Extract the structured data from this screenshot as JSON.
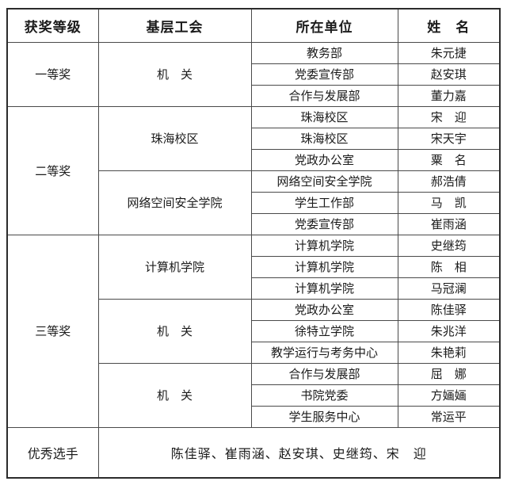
{
  "table": {
    "headers": [
      "获奖等级",
      "基层工会",
      "所在单位",
      "姓　名"
    ],
    "sections": [
      {
        "level": "一等奖",
        "groups": [
          {
            "union": "机　关",
            "rows": [
              {
                "unit": "教务部",
                "name": "朱元捷"
              },
              {
                "unit": "党委宣传部",
                "name": "赵安琪"
              },
              {
                "unit": "合作与发展部",
                "name": "董力嘉"
              }
            ]
          }
        ]
      },
      {
        "level": "二等奖",
        "groups": [
          {
            "union": "珠海校区",
            "rows": [
              {
                "unit": "珠海校区",
                "name": "宋　迎"
              },
              {
                "unit": "珠海校区",
                "name": "宋天宇"
              },
              {
                "unit": "党政办公室",
                "name": "粟　名"
              }
            ]
          },
          {
            "union": "网络空间安全学院",
            "rows": [
              {
                "unit": "网络空间安全学院",
                "name": "郝浩倩"
              },
              {
                "unit": "学生工作部",
                "name": "马　凯"
              },
              {
                "unit": "党委宣传部",
                "name": "崔雨涵"
              }
            ]
          }
        ]
      },
      {
        "level": "三等奖",
        "groups": [
          {
            "union": "计算机学院",
            "rows": [
              {
                "unit": "计算机学院",
                "name": "史继筠"
              },
              {
                "unit": "计算机学院",
                "name": "陈　相"
              },
              {
                "unit": "计算机学院",
                "name": "马冠澜"
              }
            ]
          },
          {
            "union": "机　关",
            "rows": [
              {
                "unit": "党政办公室",
                "name": "陈佳驿"
              },
              {
                "unit": "徐特立学院",
                "name": "朱兆洋"
              },
              {
                "unit": "教学运行与考务中心",
                "name": "朱艳莉"
              }
            ]
          },
          {
            "union": "机　关",
            "rows": [
              {
                "unit": "合作与发展部",
                "name": "屈　娜"
              },
              {
                "unit": "书院党委",
                "name": "方婳婳"
              },
              {
                "unit": "学生服务中心",
                "name": "常运平"
              }
            ]
          }
        ]
      }
    ],
    "footer": {
      "label": "优秀选手",
      "value": "陈佳驿、崔雨涵、赵安琪、史继筠、宋　迎"
    }
  },
  "colors": {
    "outer_border": "#2b2b2b",
    "inner_border": "#4a4a4a",
    "text": "#1b1b1b",
    "background": "#ffffff"
  }
}
